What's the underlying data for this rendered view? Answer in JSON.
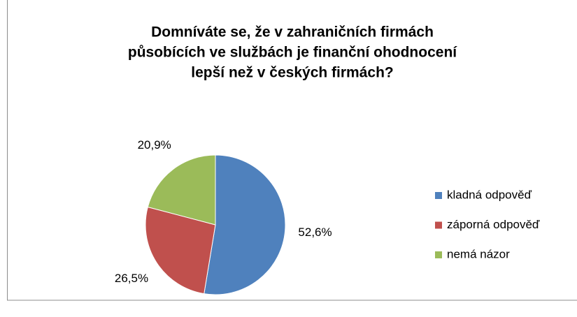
{
  "chart_data": {
    "type": "pie",
    "title": [
      "Domníváte se, že v zahraničních firmách",
      "působících ve službách je finanční ohodnocení",
      "lepší než v českých firmách?"
    ],
    "categories": [
      "kladná odpověď",
      "záporná odpověď",
      "nemá názor"
    ],
    "values": [
      52.6,
      26.5,
      20.9
    ],
    "value_labels": [
      "52,6%",
      "26,5%",
      "20,9%"
    ],
    "colors": [
      "#4f81bd",
      "#c0504d",
      "#9bbb59"
    ],
    "legend": "right"
  }
}
